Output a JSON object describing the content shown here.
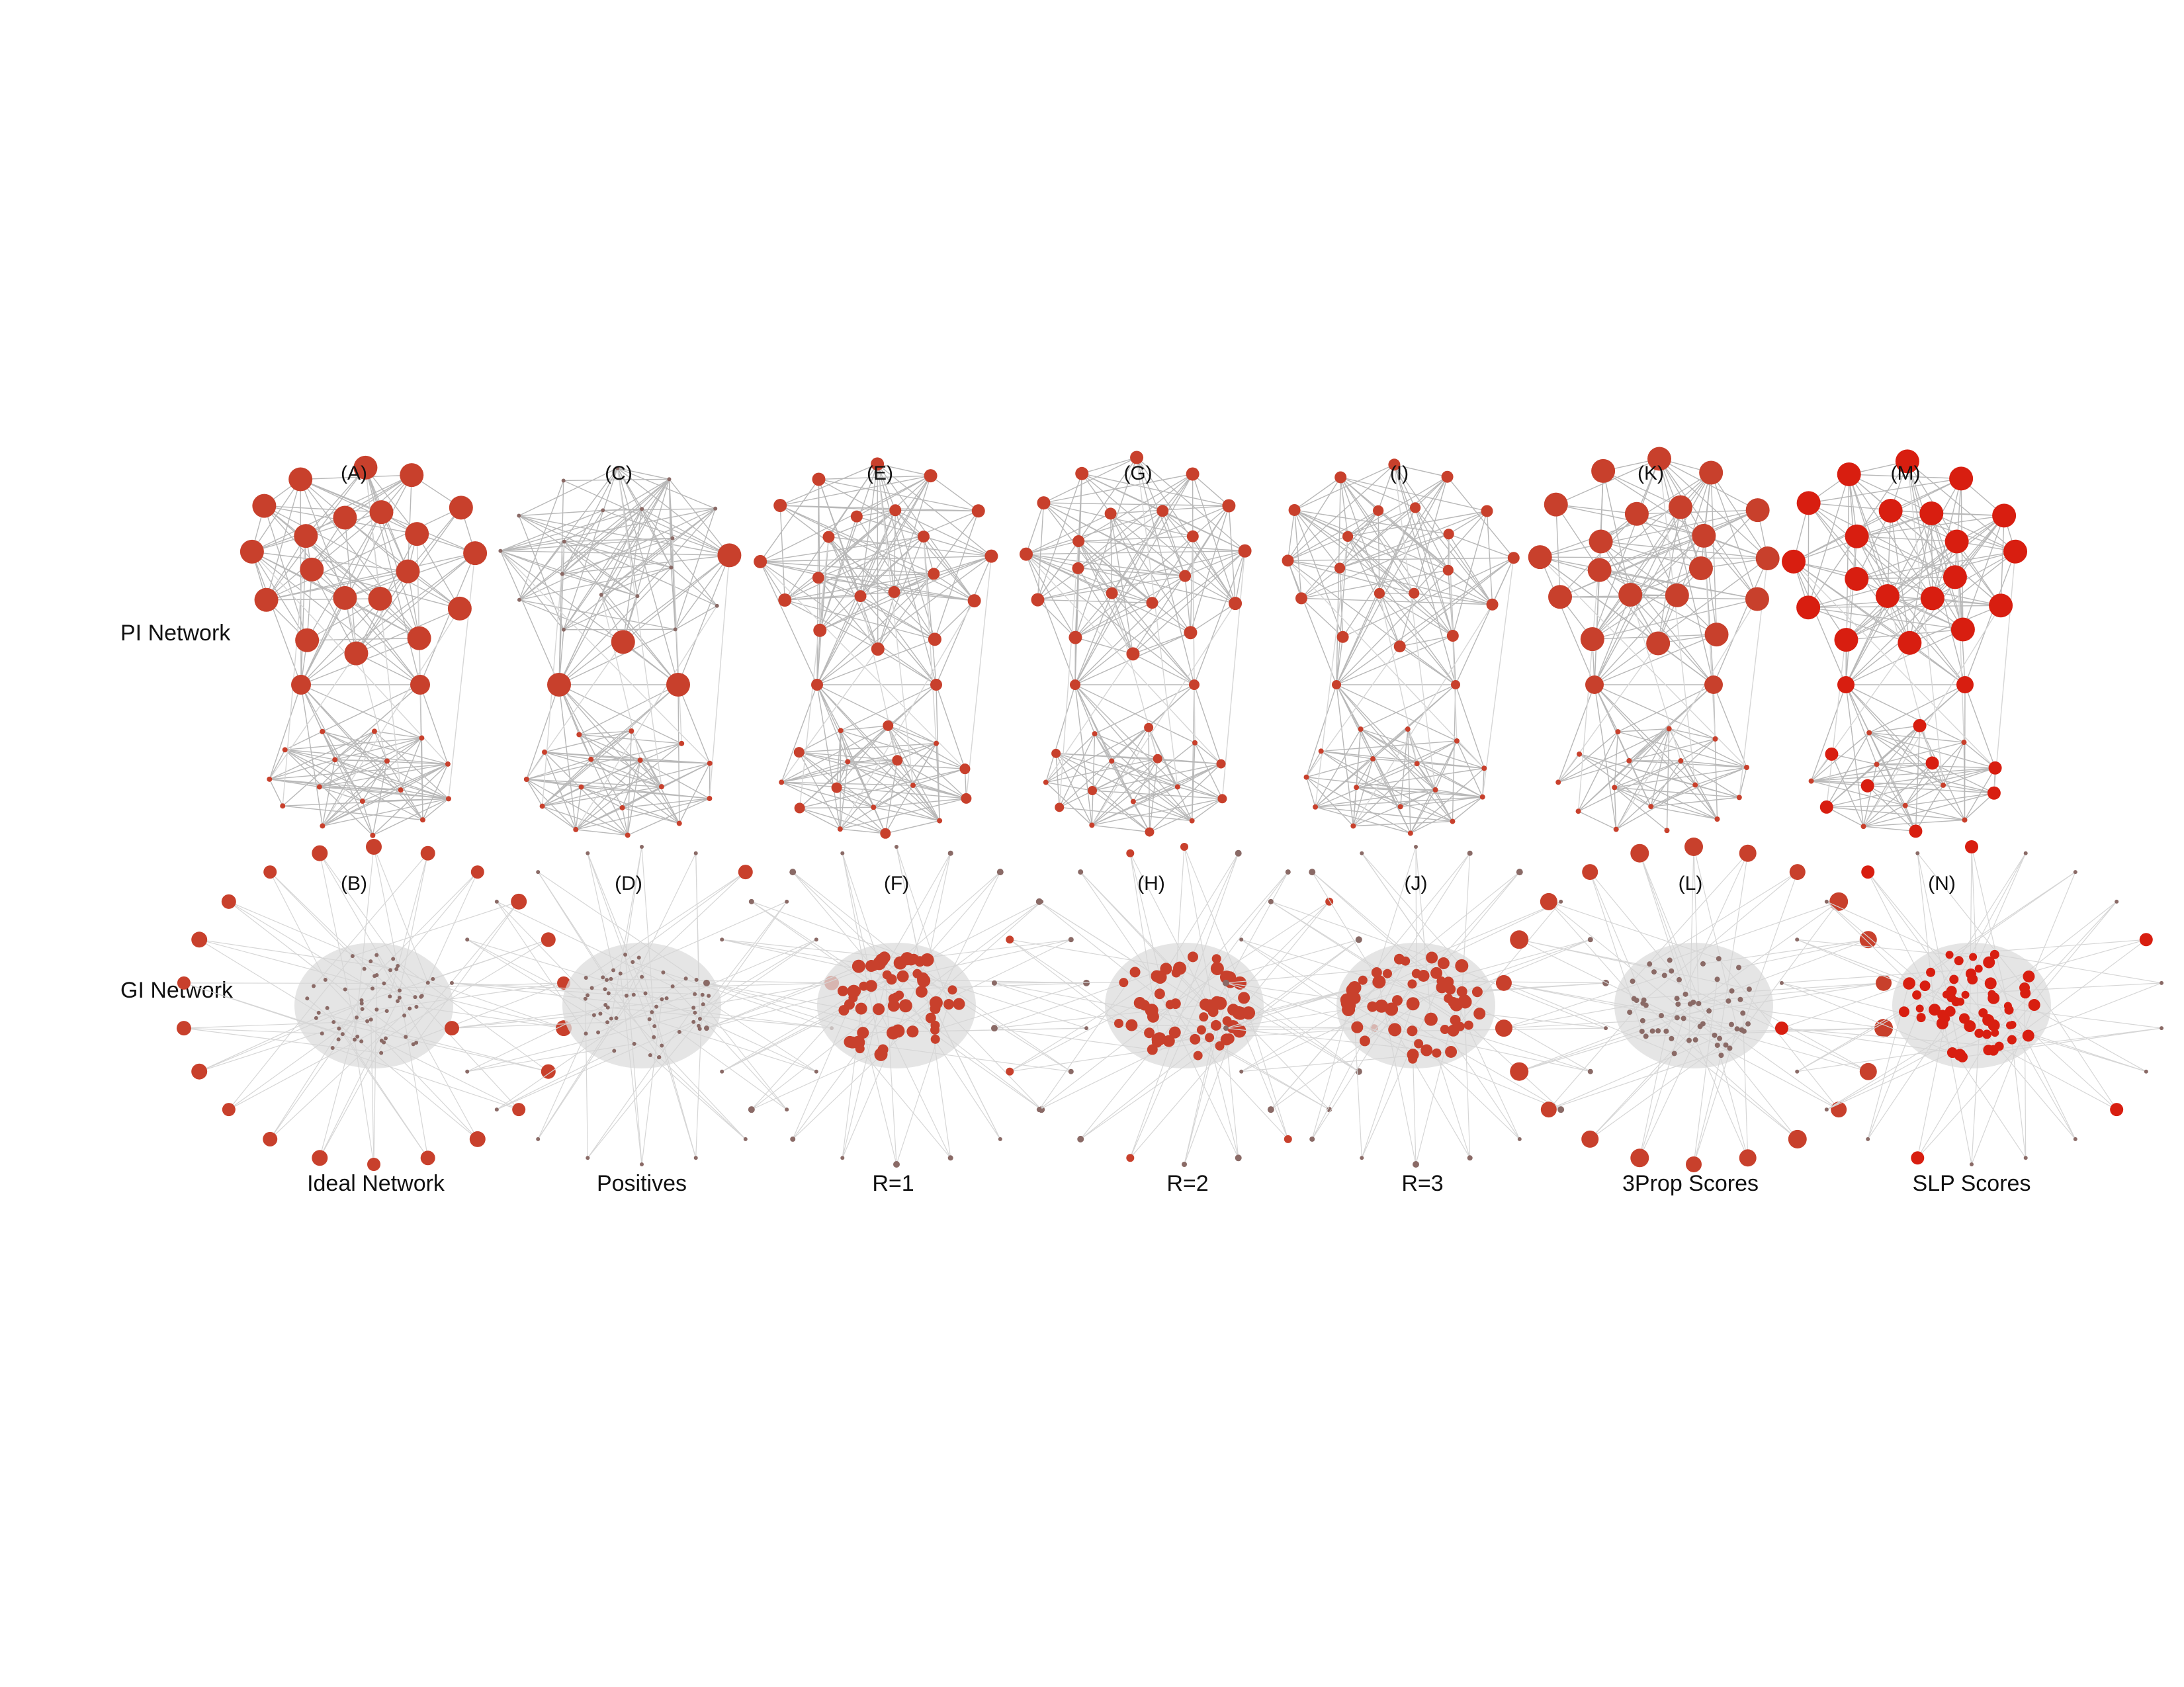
{
  "row_labels": [
    "PI Network",
    "GI Network"
  ],
  "panels": [
    {
      "pi_label": "(A)",
      "gi_label": "(B)",
      "caption": "Ideal Network"
    },
    {
      "pi_label": "(C)",
      "gi_label": "(D)",
      "caption": "Positives"
    },
    {
      "pi_label": "(E)",
      "gi_label": "(F)",
      "caption": "R=1"
    },
    {
      "pi_label": "(G)",
      "gi_label": "(H)",
      "caption": "R=2"
    },
    {
      "pi_label": "(I)",
      "gi_label": "(J)",
      "caption": "R=3"
    },
    {
      "pi_label": "(K)",
      "gi_label": "(L)",
      "caption": "3Prop Scores"
    },
    {
      "pi_label": "(M)",
      "gi_label": "(N)",
      "caption": "SLP Scores"
    }
  ],
  "colors": {
    "node": "#c8402c",
    "node_bright": "#d81e10",
    "node_small": "#8a6a66",
    "edge": "#b8b8b8",
    "edge_light": "#d6d6d6",
    "cluster_fill": "#dcdcdc"
  }
}
